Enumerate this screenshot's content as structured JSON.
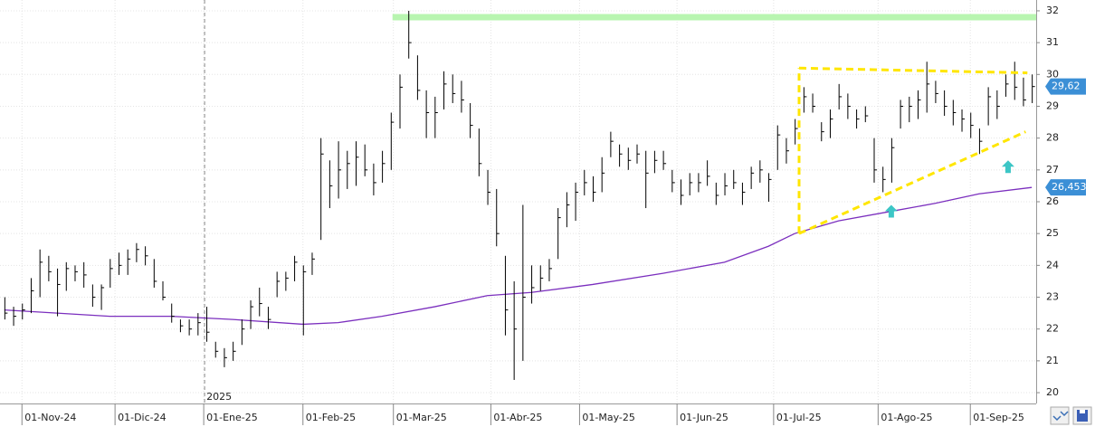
{
  "chart_data": {
    "type": "ohlc",
    "bar_color": "#000000",
    "x": [
      0,
      1,
      2,
      3,
      4,
      5,
      6,
      7,
      8,
      9,
      10,
      11,
      12,
      13,
      14,
      15,
      16,
      17,
      18,
      19,
      20,
      21,
      22,
      23,
      24,
      25,
      26,
      27,
      28,
      29,
      30,
      31,
      32,
      33,
      34,
      35,
      36,
      37,
      38,
      39,
      40,
      41,
      42,
      43,
      44,
      45,
      46,
      47,
      48,
      49,
      50,
      51,
      52,
      53,
      54,
      55,
      56,
      57,
      58,
      59,
      60,
      61,
      62,
      63,
      64,
      65,
      66,
      67,
      68,
      69,
      70,
      71,
      72,
      73,
      74,
      75,
      76,
      77,
      78,
      79,
      80,
      81,
      82,
      83,
      84,
      85,
      86,
      87,
      88,
      89,
      90,
      91,
      92,
      93,
      94,
      95,
      96,
      97,
      98,
      99,
      100,
      101,
      102,
      103,
      104,
      105,
      106,
      107,
      108,
      109,
      110,
      111,
      112,
      113,
      114,
      115,
      116,
      117
    ],
    "low": [
      22.3,
      22.1,
      22.3,
      22.5,
      23.0,
      23.5,
      22.4,
      23.2,
      23.5,
      23.3,
      22.7,
      22.6,
      23.3,
      23.7,
      23.7,
      24.1,
      24.0,
      23.3,
      22.9,
      22.2,
      21.9,
      21.8,
      21.8,
      21.6,
      21.1,
      20.8,
      21.0,
      21.5,
      22.0,
      22.4,
      22.0,
      23.0,
      23.2,
      23.5,
      21.8,
      23.7,
      24.8,
      25.8,
      26.1,
      26.4,
      26.5,
      26.8,
      26.2,
      26.6,
      27.0,
      28.3,
      30.5,
      29.2,
      28.0,
      28.0,
      28.9,
      29.1,
      28.8,
      28.0,
      26.8,
      25.9,
      24.6,
      21.8,
      20.4,
      21.0,
      22.8,
      23.2,
      23.5,
      24.2,
      25.2,
      25.4,
      26.2,
      26.0,
      26.3,
      27.4,
      27.1,
      27.0,
      27.2,
      25.8,
      26.9,
      27.0,
      26.3,
      25.9,
      26.2,
      26.3,
      26.5,
      25.9,
      26.2,
      26.4,
      25.9,
      26.4,
      26.6,
      26.0,
      27.0,
      27.2,
      27.8,
      28.8,
      28.8,
      27.9,
      28.0,
      28.9,
      28.6,
      28.3,
      28.5,
      26.6,
      26.3,
      26.6,
      28.3,
      28.5,
      28.6,
      28.8,
      29.1,
      28.7,
      28.4,
      28.2,
      28.0,
      27.5,
      28.4,
      28.6,
      29.3,
      29.2,
      29.0,
      29.1
    ],
    "high": [
      23.0,
      22.7,
      22.8,
      23.6,
      24.5,
      24.3,
      23.9,
      24.1,
      24.0,
      24.1,
      23.4,
      23.4,
      24.2,
      24.4,
      24.5,
      24.7,
      24.6,
      24.2,
      23.5,
      22.8,
      22.3,
      22.3,
      22.5,
      22.7,
      21.6,
      21.4,
      21.6,
      22.3,
      22.9,
      23.3,
      22.7,
      23.8,
      23.8,
      24.3,
      24.0,
      24.4,
      28.0,
      27.3,
      27.9,
      27.6,
      27.9,
      27.8,
      27.2,
      27.6,
      28.8,
      30.0,
      32.0,
      30.6,
      29.5,
      29.3,
      30.1,
      30.0,
      29.8,
      29.1,
      28.3,
      27.0,
      26.4,
      24.3,
      23.5,
      25.9,
      24.0,
      24.0,
      24.2,
      25.8,
      26.3,
      26.6,
      27.0,
      26.8,
      27.4,
      28.2,
      27.8,
      27.7,
      27.8,
      27.6,
      27.6,
      27.6,
      27.0,
      26.7,
      26.9,
      26.9,
      27.3,
      26.6,
      26.9,
      27.0,
      26.6,
      27.1,
      27.3,
      26.9,
      28.4,
      28.0,
      28.6,
      29.6,
      29.4,
      28.5,
      28.9,
      29.7,
      29.4,
      28.9,
      29.0,
      28.0,
      27.1,
      28.0,
      29.2,
      29.3,
      29.5,
      30.4,
      29.8,
      29.5,
      29.2,
      28.9,
      28.8,
      28.3,
      29.6,
      29.5,
      30.0,
      30.4,
      29.9,
      30.0
    ],
    "close": [
      22.5,
      22.4,
      22.6,
      23.2,
      24.1,
      23.8,
      23.4,
      23.9,
      23.8,
      23.7,
      23.0,
      23.3,
      23.9,
      24.0,
      24.2,
      24.5,
      24.3,
      23.5,
      23.0,
      22.4,
      22.1,
      22.0,
      22.2,
      21.9,
      21.3,
      21.1,
      21.3,
      22.0,
      22.7,
      22.8,
      22.3,
      23.5,
      23.6,
      24.1,
      23.8,
      24.2,
      27.5,
      26.5,
      27.0,
      27.2,
      27.4,
      27.0,
      26.6,
      27.2,
      28.5,
      29.6,
      31.0,
      29.5,
      28.8,
      28.8,
      29.7,
      29.4,
      29.2,
      28.4,
      27.2,
      26.3,
      25.0,
      22.6,
      22.0,
      23.0,
      23.3,
      23.6,
      23.9,
      25.5,
      25.9,
      26.3,
      26.6,
      26.3,
      26.9,
      27.9,
      27.5,
      27.3,
      27.5,
      26.9,
      27.3,
      27.2,
      26.6,
      26.2,
      26.6,
      26.6,
      26.8,
      26.2,
      26.5,
      26.6,
      26.3,
      26.9,
      27.0,
      26.7,
      28.1,
      27.6,
      28.3,
      29.3,
      29.0,
      28.2,
      28.6,
      29.3,
      29.0,
      28.6,
      28.7,
      27.0,
      26.7,
      27.7,
      29.0,
      29.0,
      29.2,
      29.7,
      29.4,
      29.0,
      28.8,
      28.6,
      28.4,
      27.9,
      29.3,
      29.0,
      29.7,
      29.6,
      29.2,
      29.62
    ],
    "moving_average": {
      "color": "#7b2fbe",
      "x": [
        0,
        6,
        12,
        19,
        26,
        34,
        38,
        43,
        49,
        55,
        60,
        67,
        75,
        82,
        87,
        90,
        95,
        101,
        106,
        111,
        117
      ],
      "values": [
        22.6,
        22.5,
        22.4,
        22.4,
        22.3,
        22.15,
        22.2,
        22.4,
        22.7,
        23.05,
        23.15,
        23.4,
        23.75,
        24.1,
        24.6,
        25.0,
        25.4,
        25.7,
        25.95,
        26.25,
        26.45
      ]
    },
    "resistance": {
      "color": "#b8f5b0",
      "x": [
        44.2,
        117.5
      ],
      "values": [
        31.8,
        31.8
      ]
    },
    "triangle": {
      "color": "#ffe600",
      "lines": [
        {
          "x": [
            90.5,
            90.5
          ],
          "values": [
            25.0,
            30.2
          ]
        },
        {
          "x": [
            90.5,
            116.5
          ],
          "values": [
            30.2,
            30.05
          ]
        },
        {
          "x": [
            90.5,
            116.3
          ],
          "values": [
            25.0,
            28.2
          ]
        }
      ]
    },
    "arrows": {
      "color": "#3cc6c6",
      "x": [
        101,
        114.3
      ],
      "values": [
        25.9,
        27.3
      ]
    },
    "price_markers": [
      {
        "value": 29.62,
        "label": "29,62",
        "color": "#3b8fd6"
      },
      {
        "value": 26.453,
        "label": "26,453",
        "color": "#3b8fd6"
      }
    ],
    "year_marker": {
      "x": 22.8,
      "label": "2025"
    },
    "xlim": [
      -0.5,
      117.5
    ],
    "ylim": [
      19.66,
      32.34
    ],
    "yticks": [
      20,
      21,
      22,
      23,
      24,
      25,
      26,
      27,
      28,
      29,
      30,
      31,
      32
    ],
    "xticks": [
      {
        "value": 2,
        "label": "01-Nov-24"
      },
      {
        "value": 12.6,
        "label": "01-Dic-24"
      },
      {
        "value": 22.7,
        "label": "01-Ene-25"
      },
      {
        "value": 34,
        "label": "01-Feb-25"
      },
      {
        "value": 44.3,
        "label": "01-Mar-25"
      },
      {
        "value": 55.4,
        "label": "01-Abr-25"
      },
      {
        "value": 65.5,
        "label": "01-May-25"
      },
      {
        "value": 76.6,
        "label": "01-Jun-25"
      },
      {
        "value": 87.6,
        "label": "01-Jul-25"
      },
      {
        "value": 99.5,
        "label": "01-Ago-25"
      },
      {
        "value": 110,
        "label": "01-Sep-25"
      }
    ],
    "grid": true
  }
}
